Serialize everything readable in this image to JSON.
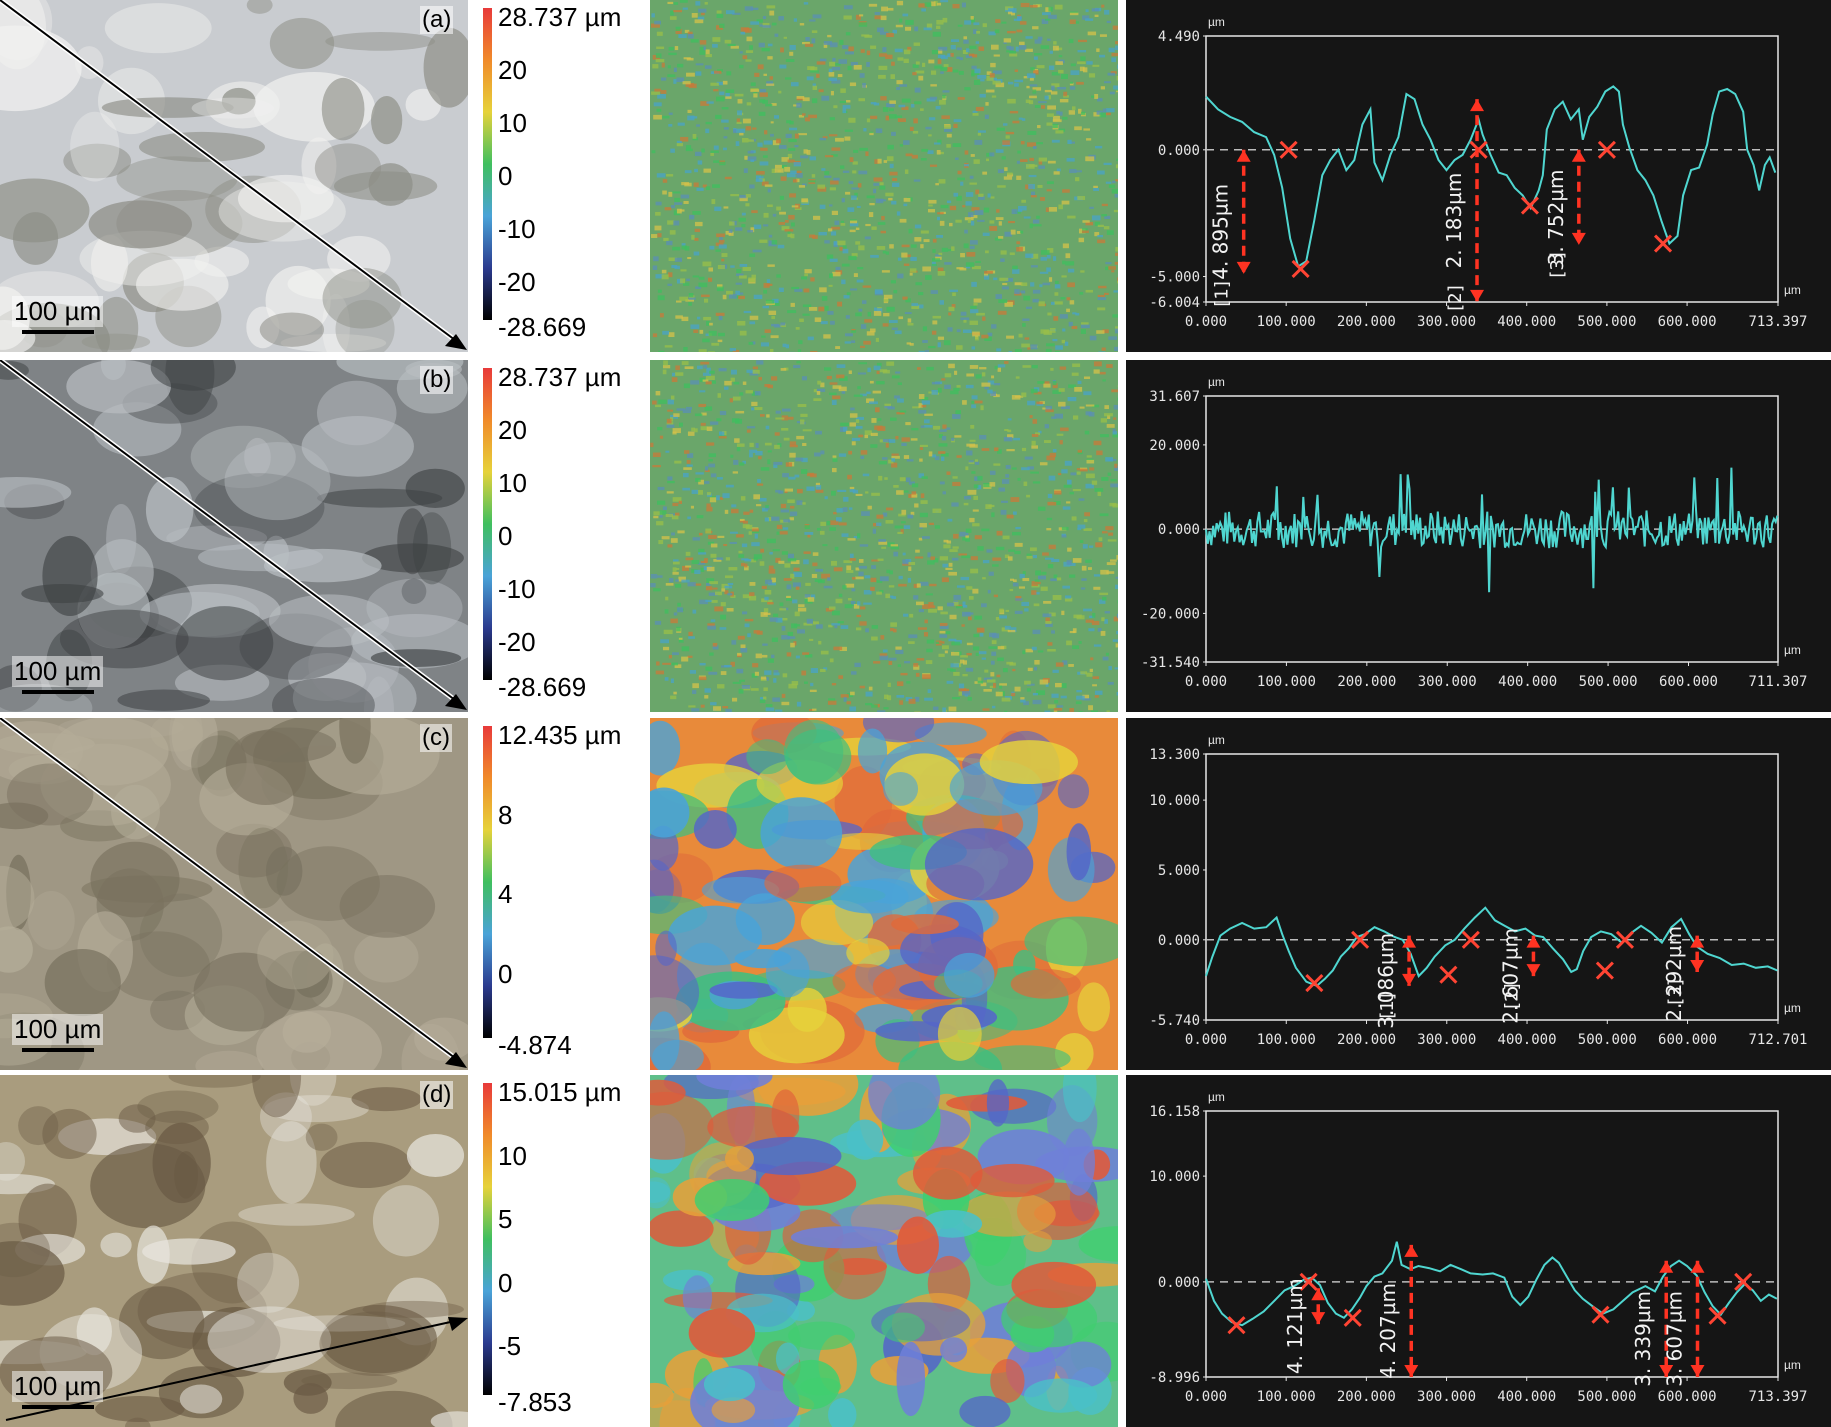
{
  "unit_label": "µm",
  "rows": [
    {
      "label": "(a)",
      "scale_bar": "100 µm",
      "photo_tone": [
        "#c9ccd0",
        "#8d8e86",
        "#f2f2f0"
      ],
      "map_tone": "fine",
      "colorbar": {
        "max_label": "28.737 µm",
        "mid_labels": [
          "20",
          "10",
          "0",
          "-10",
          "-20"
        ],
        "min_label": "-28.669",
        "colors": [
          "#e83a3a",
          "#f08a2a",
          "#e6d23a",
          "#3fbf5f",
          "#4aa3d8",
          "#2b3b8f",
          "#000000"
        ]
      }
    },
    {
      "label": "(b)",
      "scale_bar": "100 µm",
      "photo_tone": [
        "#7f8386",
        "#3d4042",
        "#b9bec2"
      ],
      "map_tone": "fine",
      "colorbar": {
        "max_label": "28.737 µm",
        "mid_labels": [
          "20",
          "10",
          "0",
          "-10",
          "-20"
        ],
        "min_label": "-28.669",
        "colors": [
          "#e83a3a",
          "#f08a2a",
          "#e6d23a",
          "#3fbf5f",
          "#4aa3d8",
          "#2b3b8f",
          "#000000"
        ]
      }
    },
    {
      "label": "(c)",
      "scale_bar": "100 µm",
      "photo_tone": [
        "#9f9784",
        "#77705d",
        "#b5ad99"
      ],
      "map_tone": "patchy",
      "colorbar": {
        "max_label": "12.435 µm",
        "mid_labels": [
          "8",
          "4",
          "0"
        ],
        "min_label": "-4.874",
        "colors": [
          "#e83a3a",
          "#f08a2a",
          "#e6d23a",
          "#3fbf5f",
          "#4aa3d8",
          "#2b3b8f",
          "#000000"
        ]
      }
    },
    {
      "label": "(d)",
      "scale_bar": "100 µm",
      "photo_tone": [
        "#a99c7e",
        "#6a5a44",
        "#e8e6df"
      ],
      "map_tone": "patchy-blue",
      "colorbar": {
        "max_label": "15.015 µm",
        "mid_labels": [
          "10",
          "5",
          "0",
          "-5"
        ],
        "min_label": "-7.853",
        "colors": [
          "#e83a3a",
          "#f08a2a",
          "#e6d23a",
          "#3fbf5f",
          "#4aa3d8",
          "#2b3b8f",
          "#000000"
        ]
      }
    }
  ],
  "chart_data": [
    {
      "type": "line",
      "panel": "(a)",
      "ylabel": "µm",
      "xlabel": "µm",
      "xlim": [
        0,
        713.397
      ],
      "ylim": [
        -6.004,
        4.49
      ],
      "x_ticks": [
        "0.000",
        "100.000",
        "200.000",
        "300.000",
        "400.000",
        "500.000",
        "600.000",
        "713.397"
      ],
      "x_tick_values": [
        0,
        100,
        200,
        300,
        400,
        500,
        600,
        713.397
      ],
      "y_ticks": [
        "4.490",
        "0.000",
        "-5.000",
        "-6.004"
      ],
      "y_tick_values": [
        4.49,
        0,
        -5,
        -6.004
      ],
      "color": "#4fd6d0",
      "points": [
        [
          0,
          2.1
        ],
        [
          15,
          1.6
        ],
        [
          30,
          1.3
        ],
        [
          45,
          1.1
        ],
        [
          60,
          0.7
        ],
        [
          75,
          0.5
        ],
        [
          85,
          -0.2
        ],
        [
          95,
          -1.5
        ],
        [
          105,
          -3.5
        ],
        [
          115,
          -4.6
        ],
        [
          125,
          -4.4
        ],
        [
          135,
          -2.8
        ],
        [
          145,
          -1.0
        ],
        [
          155,
          -0.4
        ],
        [
          165,
          0.0
        ],
        [
          175,
          -0.8
        ],
        [
          185,
          -0.4
        ],
        [
          195,
          1.0
        ],
        [
          205,
          1.6
        ],
        [
          210,
          -0.5
        ],
        [
          220,
          -1.2
        ],
        [
          230,
          -0.2
        ],
        [
          240,
          0.5
        ],
        [
          250,
          2.2
        ],
        [
          260,
          2.0
        ],
        [
          270,
          1.0
        ],
        [
          280,
          0.4
        ],
        [
          290,
          -0.4
        ],
        [
          300,
          -0.8
        ],
        [
          310,
          -0.4
        ],
        [
          320,
          -0.2
        ],
        [
          330,
          0.4
        ],
        [
          340,
          1.2
        ],
        [
          345,
          0.6
        ],
        [
          355,
          -0.2
        ],
        [
          365,
          -0.9
        ],
        [
          375,
          -1.0
        ],
        [
          385,
          -1.5
        ],
        [
          395,
          -1.8
        ],
        [
          405,
          -2.3
        ],
        [
          415,
          -1.6
        ],
        [
          420,
          -1.0
        ],
        [
          425,
          0.8
        ],
        [
          435,
          1.6
        ],
        [
          445,
          1.9
        ],
        [
          455,
          1.2
        ],
        [
          465,
          1.6
        ],
        [
          470,
          0.4
        ],
        [
          478,
          1.3
        ],
        [
          488,
          1.7
        ],
        [
          498,
          2.3
        ],
        [
          508,
          2.5
        ],
        [
          515,
          2.3
        ],
        [
          520,
          1.0
        ],
        [
          528,
          0.1
        ],
        [
          538,
          -0.8
        ],
        [
          548,
          -1.2
        ],
        [
          558,
          -1.8
        ],
        [
          568,
          -2.8
        ],
        [
          578,
          -3.7
        ],
        [
          588,
          -3.4
        ],
        [
          595,
          -1.8
        ],
        [
          605,
          -0.8
        ],
        [
          615,
          -0.7
        ],
        [
          625,
          0.2
        ],
        [
          632,
          1.4
        ],
        [
          640,
          2.3
        ],
        [
          650,
          2.4
        ],
        [
          660,
          2.2
        ],
        [
          670,
          1.5
        ],
        [
          675,
          0.0
        ],
        [
          683,
          -0.6
        ],
        [
          690,
          -1.6
        ],
        [
          697,
          -0.6
        ],
        [
          703,
          -0.3
        ],
        [
          710,
          -0.9
        ]
      ],
      "annotations": [
        "[1]",
        "4. 895µm",
        "[2]",
        "2. 183µm",
        "[3]",
        "3. 752µm"
      ],
      "markers": [
        [
          103,
          0.0
        ],
        [
          118,
          -4.7
        ],
        [
          340,
          0.0
        ],
        [
          404,
          -2.2
        ],
        [
          500,
          0.0
        ],
        [
          570,
          -3.7
        ]
      ],
      "arrows": [
        {
          "x": 47,
          "y1": 0.0,
          "y2": -4.895,
          "label_index": 1,
          "tag_index": 0
        },
        {
          "x": 338,
          "y1": 2.0,
          "y2": -6.0,
          "label_index": 3,
          "tag_index": 2
        },
        {
          "x": 465,
          "y1": 0.0,
          "y2": -3.752,
          "label_index": 5,
          "tag_index": 4
        }
      ]
    },
    {
      "type": "line",
      "panel": "(b)",
      "ylabel": "µm",
      "xlabel": "µm",
      "xlim": [
        0,
        711.307
      ],
      "ylim": [
        -31.54,
        31.607
      ],
      "x_ticks": [
        "0.000",
        "100.000",
        "200.000",
        "300.000",
        "400.000",
        "500.000",
        "600.000",
        "711.307"
      ],
      "x_tick_values": [
        0,
        100,
        200,
        300,
        400,
        500,
        600,
        711.307
      ],
      "y_ticks": [
        "31.607",
        "20.000",
        "0.000",
        "-20.000",
        "-31.540"
      ],
      "y_tick_values": [
        31.607,
        20,
        0,
        -20,
        -31.54
      ],
      "color": "#4fd6d0",
      "noise": {
        "amplitude": 4.5,
        "spike": 15,
        "seed": 7
      },
      "points": [],
      "annotations": [],
      "markers": [],
      "arrows": []
    },
    {
      "type": "line",
      "panel": "(c)",
      "ylabel": "µm",
      "xlabel": "µm",
      "xlim": [
        0,
        712.701
      ],
      "ylim": [
        -5.74,
        13.3
      ],
      "x_ticks": [
        "0.000",
        "100.000",
        "200.000",
        "300.000",
        "400.000",
        "500.000",
        "600.000",
        "712.701"
      ],
      "x_tick_values": [
        0,
        100,
        200,
        300,
        400,
        500,
        600,
        712.701
      ],
      "y_ticks": [
        "13.300",
        "10.000",
        "5.000",
        "0.000",
        "-5.740"
      ],
      "y_tick_values": [
        13.3,
        10,
        5,
        0,
        -5.74
      ],
      "color": "#4fd6d0",
      "points": [
        [
          0,
          -2.6
        ],
        [
          8,
          -1.2
        ],
        [
          18,
          0.3
        ],
        [
          30,
          0.8
        ],
        [
          45,
          1.2
        ],
        [
          60,
          0.8
        ],
        [
          75,
          0.9
        ],
        [
          88,
          1.6
        ],
        [
          95,
          0.4
        ],
        [
          103,
          -0.8
        ],
        [
          112,
          -2.0
        ],
        [
          125,
          -3.0
        ],
        [
          138,
          -3.3
        ],
        [
          148,
          -2.8
        ],
        [
          158,
          -2.2
        ],
        [
          168,
          -1.2
        ],
        [
          178,
          -0.6
        ],
        [
          188,
          0.2
        ],
        [
          198,
          0.4
        ],
        [
          210,
          0.9
        ],
        [
          222,
          0.6
        ],
        [
          235,
          0.2
        ],
        [
          245,
          0.0
        ],
        [
          255,
          -1.0
        ],
        [
          265,
          -2.6
        ],
        [
          275,
          -2.0
        ],
        [
          285,
          -1.2
        ],
        [
          298,
          -0.4
        ],
        [
          310,
          0.0
        ],
        [
          322,
          0.8
        ],
        [
          335,
          1.6
        ],
        [
          348,
          2.3
        ],
        [
          360,
          1.4
        ],
        [
          372,
          1.0
        ],
        [
          385,
          0.6
        ],
        [
          398,
          0.8
        ],
        [
          410,
          0.3
        ],
        [
          420,
          0.2
        ],
        [
          432,
          -0.6
        ],
        [
          445,
          -1.4
        ],
        [
          455,
          -2.3
        ],
        [
          462,
          -2.1
        ],
        [
          470,
          -0.8
        ],
        [
          480,
          0.2
        ],
        [
          492,
          0.6
        ],
        [
          505,
          0.4
        ],
        [
          518,
          -0.2
        ],
        [
          530,
          0.5
        ],
        [
          542,
          1.0
        ],
        [
          555,
          0.5
        ],
        [
          568,
          -0.2
        ],
        [
          580,
          0.9
        ],
        [
          592,
          1.5
        ],
        [
          602,
          0.4
        ],
        [
          612,
          -0.5
        ],
        [
          625,
          -1.0
        ],
        [
          640,
          -1.3
        ],
        [
          655,
          -1.8
        ],
        [
          670,
          -1.7
        ],
        [
          685,
          -2.0
        ],
        [
          700,
          -1.9
        ],
        [
          712,
          -2.2
        ]
      ],
      "annotations": [
        "[1]",
        "3. 086µm",
        "[2]",
        "2. 607µm",
        "[3]",
        "2. 292µm"
      ],
      "markers": [
        [
          135,
          -3.1
        ],
        [
          192,
          0.0
        ],
        [
          302,
          -2.5
        ],
        [
          330,
          0.0
        ],
        [
          497,
          -2.2
        ],
        [
          522,
          0.0
        ]
      ],
      "arrows": [
        {
          "x": 253,
          "y1": 0.3,
          "y2": -3.3,
          "label_index": 1,
          "tag_index": 0
        },
        {
          "x": 408,
          "y1": 0.3,
          "y2": -2.6,
          "label_index": 3,
          "tag_index": 2
        },
        {
          "x": 612,
          "y1": 0.3,
          "y2": -2.3,
          "label_index": 5,
          "tag_index": 4
        }
      ]
    },
    {
      "type": "line",
      "panel": "(d)",
      "ylabel": "µm",
      "xlabel": "µm",
      "xlim": [
        0,
        713.397
      ],
      "ylim": [
        -8.996,
        16.158
      ],
      "x_ticks": [
        "0.000",
        "100.000",
        "200.000",
        "300.000",
        "400.000",
        "500.000",
        "600.000",
        "713.397"
      ],
      "x_tick_values": [
        0,
        100,
        200,
        300,
        400,
        500,
        600,
        713.397
      ],
      "y_ticks": [
        "16.158",
        "10.000",
        "0.000",
        "-8.996"
      ],
      "y_tick_values": [
        16.158,
        10,
        0,
        -8.996
      ],
      "color": "#4fd6d0",
      "points": [
        [
          0,
          0.3
        ],
        [
          10,
          -1.8
        ],
        [
          20,
          -3.0
        ],
        [
          32,
          -3.8
        ],
        [
          45,
          -4.1
        ],
        [
          58,
          -3.5
        ],
        [
          72,
          -2.8
        ],
        [
          85,
          -1.8
        ],
        [
          98,
          -0.8
        ],
        [
          110,
          -0.4
        ],
        [
          122,
          0.2
        ],
        [
          132,
          0.4
        ],
        [
          142,
          -0.3
        ],
        [
          152,
          -2.0
        ],
        [
          162,
          -3.0
        ],
        [
          172,
          -3.4
        ],
        [
          182,
          -2.6
        ],
        [
          192,
          -1.5
        ],
        [
          200,
          -0.4
        ],
        [
          210,
          0.5
        ],
        [
          220,
          0.8
        ],
        [
          232,
          2.0
        ],
        [
          238,
          3.8
        ],
        [
          244,
          1.6
        ],
        [
          255,
          1.2
        ],
        [
          265,
          1.5
        ],
        [
          278,
          1.3
        ],
        [
          292,
          1.0
        ],
        [
          305,
          1.6
        ],
        [
          318,
          1.2
        ],
        [
          330,
          0.8
        ],
        [
          345,
          0.7
        ],
        [
          358,
          0.8
        ],
        [
          372,
          0.4
        ],
        [
          382,
          -1.4
        ],
        [
          392,
          -2.2
        ],
        [
          402,
          -1.4
        ],
        [
          412,
          0.2
        ],
        [
          422,
          1.6
        ],
        [
          432,
          2.3
        ],
        [
          440,
          1.8
        ],
        [
          450,
          0.5
        ],
        [
          460,
          -0.8
        ],
        [
          470,
          -1.6
        ],
        [
          482,
          -2.3
        ],
        [
          495,
          -3.0
        ],
        [
          508,
          -2.6
        ],
        [
          520,
          -1.8
        ],
        [
          532,
          -1.0
        ],
        [
          548,
          -0.4
        ],
        [
          560,
          -0.9
        ],
        [
          570,
          0.5
        ],
        [
          580,
          1.5
        ],
        [
          590,
          2.0
        ],
        [
          600,
          1.5
        ],
        [
          612,
          0.6
        ],
        [
          622,
          -1.0
        ],
        [
          632,
          -2.3
        ],
        [
          642,
          -3.1
        ],
        [
          652,
          -2.0
        ],
        [
          662,
          -1.0
        ],
        [
          672,
          -0.2
        ],
        [
          682,
          -0.8
        ],
        [
          692,
          -1.8
        ],
        [
          702,
          -1.2
        ],
        [
          712,
          -1.6
        ]
      ],
      "annotations": [
        "4. 121µm",
        "4. 207µm",
        "3. 339µm",
        "3. 607µm"
      ],
      "markers": [
        [
          38,
          -4.1
        ],
        [
          128,
          0.0
        ],
        [
          183,
          -3.4
        ],
        [
          638,
          -3.2
        ],
        [
          670,
          0.0
        ],
        [
          492,
          -3.1
        ]
      ],
      "arrows": [
        {
          "x": 140,
          "y1": -0.6,
          "y2": -4.0,
          "label_index": 0,
          "tag_index": -1
        },
        {
          "x": 256,
          "y1": 3.5,
          "y2": -9.0,
          "label_index": 1,
          "tag_index": -1
        },
        {
          "x": 574,
          "y1": 2.0,
          "y2": -9.0,
          "label_index": 2,
          "tag_index": -1
        },
        {
          "x": 613,
          "y1": 2.0,
          "y2": -9.0,
          "label_index": 3,
          "tag_index": -1
        }
      ]
    }
  ]
}
